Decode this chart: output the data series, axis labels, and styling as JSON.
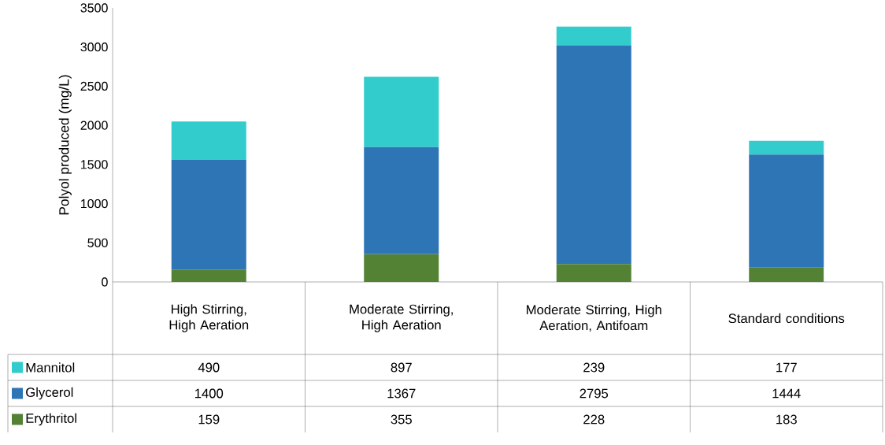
{
  "chart_data": {
    "type": "bar",
    "stacked": true,
    "ylabel": "Polyol produced (mg/L)",
    "categories": [
      "High Stirring, High Aeration",
      "Moderate Stirring, High Aeration",
      "Moderate Stirring, High Aeration, Antifoam",
      "Standard conditions"
    ],
    "series": [
      {
        "name": "Erythritol",
        "color": "#548235",
        "values": [
          159,
          355,
          228,
          183
        ]
      },
      {
        "name": "Glycerol",
        "color": "#2e75b6",
        "values": [
          1400,
          1367,
          2795,
          1444
        ]
      },
      {
        "name": "Mannitol",
        "color": "#33cccc",
        "values": [
          490,
          897,
          239,
          177
        ]
      }
    ],
    "ylim": [
      0,
      3500
    ],
    "yticks": [
      0,
      500,
      1000,
      1500,
      2000,
      2500,
      3000,
      3500
    ],
    "data_labels": true,
    "legend": "bottom"
  }
}
